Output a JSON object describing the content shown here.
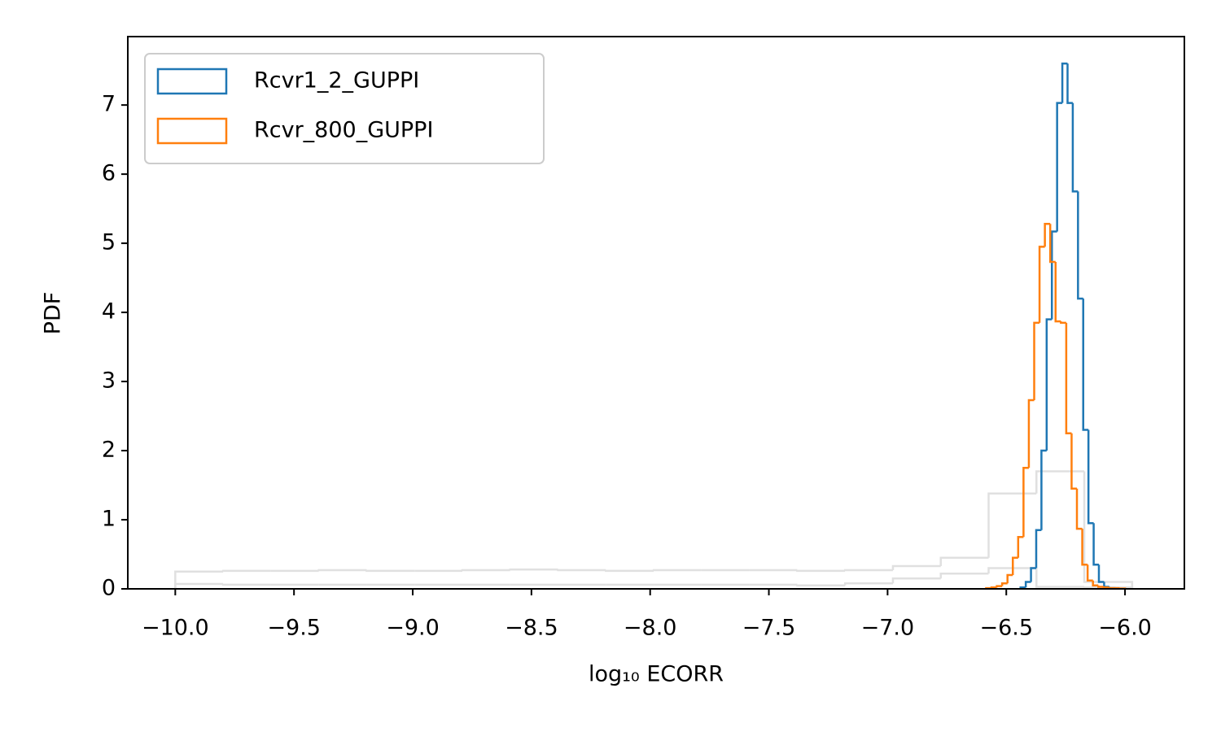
{
  "chart_data": {
    "type": "histogram",
    "xlabel": "log₁₀ ECORR",
    "ylabel": "PDF",
    "xlim": [
      -10.2,
      -5.75
    ],
    "ylim": [
      0,
      7.99
    ],
    "xticks": [
      {
        "value": -10.0,
        "label": "−10.0"
      },
      {
        "value": -9.5,
        "label": "−9.5"
      },
      {
        "value": -9.0,
        "label": "−9.0"
      },
      {
        "value": -8.5,
        "label": "−8.5"
      },
      {
        "value": -8.0,
        "label": "−8.0"
      },
      {
        "value": -7.5,
        "label": "−7.5"
      },
      {
        "value": -7.0,
        "label": "−7.0"
      },
      {
        "value": -6.5,
        "label": "−6.5"
      },
      {
        "value": -6.0,
        "label": "−6.0"
      }
    ],
    "yticks": [
      0,
      1,
      2,
      3,
      4,
      5,
      6,
      7
    ],
    "legend": "upper left",
    "series": [
      {
        "color": "#e0e0e0",
        "bins": [
          -10,
          -9.7985,
          -9.597,
          -9.3955,
          -9.194,
          -8.9925,
          -8.791,
          -8.5895,
          -8.388,
          -8.1865,
          -7.985,
          -7.7835,
          -7.582,
          -7.3805,
          -7.179,
          -6.9775,
          -6.776,
          -6.5745,
          -6.373,
          -6.1715,
          -5.97
        ],
        "values": [
          0.25,
          0.26,
          0.26,
          0.27,
          0.26,
          0.26,
          0.27,
          0.28,
          0.27,
          0.26,
          0.27,
          0.27,
          0.27,
          0.26,
          0.27,
          0.33,
          0.45,
          1.38,
          1.7,
          0.1
        ]
      },
      {
        "color": "#e0e0e0",
        "bins": [
          -10,
          -9.7985,
          -9.597,
          -9.3955,
          -9.194,
          -8.9925,
          -8.791,
          -8.5895,
          -8.388,
          -8.1865,
          -7.985,
          -7.7835,
          -7.582,
          -7.3805,
          -7.179,
          -6.9775,
          -6.776,
          -6.5745,
          -6.373,
          -6.1715,
          -5.97
        ],
        "values": [
          0.07,
          0.06,
          0.06,
          0.06,
          0.06,
          0.06,
          0.06,
          0.06,
          0.06,
          0.06,
          0.06,
          0.06,
          0.06,
          0.05,
          0.08,
          0.15,
          0.22,
          0.3,
          0.03,
          0.02
        ]
      },
      {
        "name": "Rcvr1_2_GUPPI",
        "color": "#1f77b4",
        "bins": [
          -6.44,
          -6.418,
          -6.396,
          -6.374,
          -6.352,
          -6.33,
          -6.308,
          -6.286,
          -6.264,
          -6.242,
          -6.22,
          -6.198,
          -6.176,
          -6.154,
          -6.132,
          -6.11,
          -6.088,
          -6.066,
          -6.044
        ],
        "values": [
          0.02,
          0.1,
          0.3,
          0.85,
          2.0,
          3.9,
          5.17,
          7.03,
          7.6,
          7.03,
          5.75,
          4.2,
          2.3,
          0.95,
          0.35,
          0.1,
          0.03,
          0.01
        ]
      },
      {
        "name": "Rcvr_800_GUPPI",
        "color": "#ff7f0e",
        "bins": [
          -6.585,
          -6.5625,
          -6.54,
          -6.5175,
          -6.495,
          -6.4725,
          -6.45,
          -6.4275,
          -6.405,
          -6.3825,
          -6.36,
          -6.3375,
          -6.315,
          -6.2925,
          -6.27,
          -6.2475,
          -6.225,
          -6.2025,
          -6.18,
          -6.1575,
          -6.135,
          -6.1125,
          -6.09,
          -6.0675,
          -6.045,
          -6.0225,
          -6.0
        ],
        "values": [
          0.01,
          0.02,
          0.04,
          0.08,
          0.2,
          0.45,
          0.75,
          1.75,
          2.73,
          3.85,
          4.95,
          5.28,
          4.73,
          3.87,
          3.85,
          2.25,
          1.45,
          0.87,
          0.35,
          0.12,
          0.05,
          0.03,
          0.02,
          0.01,
          0.01,
          0.005
        ]
      }
    ]
  }
}
